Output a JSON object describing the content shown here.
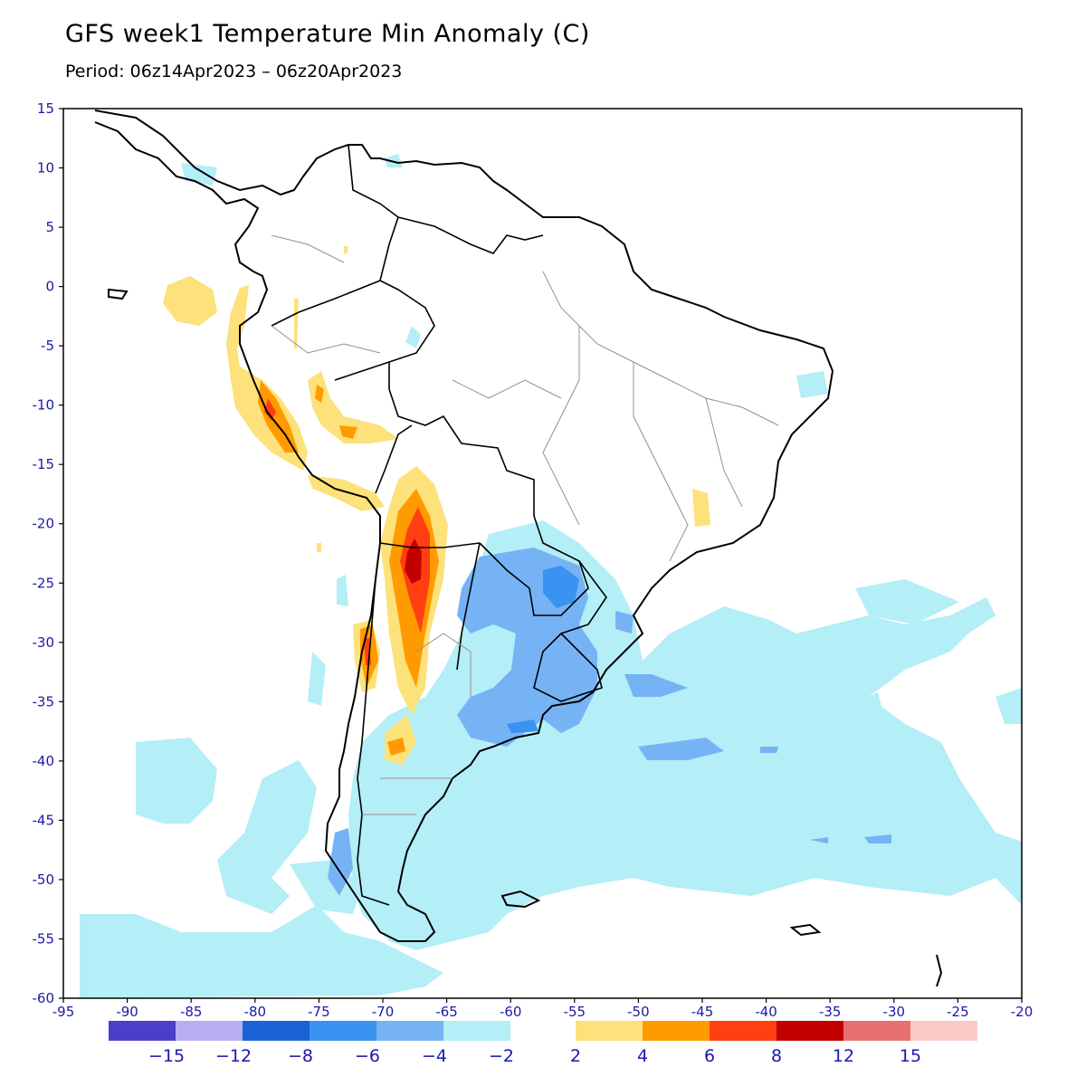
{
  "title": "GFS week1 Temperature Min Anomaly (C)",
  "subtitle": "Period: 06z14Apr2023 – 06z20Apr2023",
  "map": {
    "region": "South America",
    "lon_range": [
      -95,
      -20
    ],
    "lat_range": [
      -60,
      15
    ],
    "x_ticks": [
      "-95",
      "-90",
      "-85",
      "-80",
      "-75",
      "-70",
      "-65",
      "-60",
      "-55",
      "-50",
      "-45",
      "-40",
      "-35",
      "-30",
      "-25",
      "-20"
    ],
    "y_ticks": [
      "15",
      "10",
      "5",
      "0",
      "-5",
      "-10",
      "-15",
      "-20",
      "-25",
      "-30",
      "-35",
      "-40",
      "-45",
      "-50",
      "-55",
      "-60"
    ],
    "land_color": "#ffffff",
    "coast_color": "#000000",
    "border_color": "#a08c8c",
    "anomaly_features": [
      {
        "name": "warm anomaly Andes Argentina (peak > 8C)",
        "level": "8"
      },
      {
        "name": "warm anomaly coastal Peru",
        "level": "6"
      },
      {
        "name": "warm anomaly Chile central",
        "level": "6"
      },
      {
        "name": "cold anomaly Paraguay / NE Argentina",
        "level": "-6"
      },
      {
        "name": "cold anomaly Uruguay / Buenos Aires",
        "level": "-6"
      },
      {
        "name": "cold anomaly South Atlantic",
        "level": "-2"
      }
    ]
  },
  "legend": {
    "cold_colors": [
      "#4a3fc9",
      "#b9adf2",
      "#1a62d6",
      "#3a93f0",
      "#76b3f5",
      "#b4eef7"
    ],
    "warm_colors": [
      "#fde17a",
      "#ff9b00",
      "#ff3f12",
      "#c30000",
      "#e87070",
      "#fcc8c8"
    ],
    "cold_labels": [
      "-15",
      "-12",
      "-8",
      "-6",
      "-4",
      "-2"
    ],
    "warm_labels": [
      "2",
      "4",
      "6",
      "8",
      "12",
      "15"
    ]
  }
}
